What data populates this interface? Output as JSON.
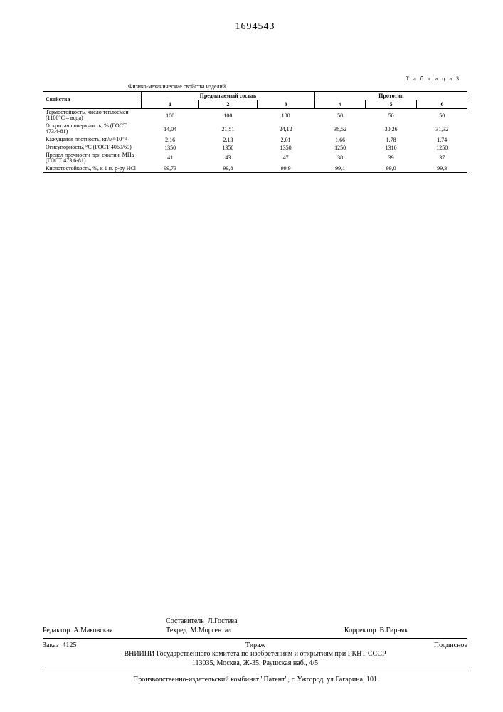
{
  "doc_number": "1694543",
  "table": {
    "label": "Т а б л и ц а 3",
    "title": "Физико-механические свойства изделий",
    "header_prop": "Свойства",
    "header_group1": "Предлагаемый состав",
    "header_group2": "Прототип",
    "cols": [
      "1",
      "2",
      "3",
      "4",
      "5",
      "6"
    ],
    "rows": [
      {
        "label": "Термостойкость, число теплосмен (1100°С – вода)",
        "vals": [
          "100",
          "100",
          "100",
          "50",
          "50",
          "50"
        ]
      },
      {
        "label": "Открытая поверхность, % (ГОСТ 473.4-81)",
        "vals": [
          "14,04",
          "21,51",
          "24,12",
          "36,52",
          "30,26",
          "31,32"
        ]
      },
      {
        "label": "Кажущаяся плотность, кг/м³·10⁻³",
        "vals": [
          "2,16",
          "2,13",
          "2,01",
          "1,66",
          "1,78",
          "1,74"
        ]
      },
      {
        "label": "Огнеупорность, °С (ГОСТ 4069/69)",
        "vals": [
          "1350",
          "1350",
          "1350",
          "1250",
          "1310",
          "1250"
        ]
      },
      {
        "label": "Предел прочности при сжатии, МПа (ГОСТ 473.6-81)",
        "vals": [
          "41",
          "43",
          "47",
          "38",
          "39",
          "37"
        ]
      },
      {
        "label": "Кислотостойкость, %, к 1 н. р-ру HCl",
        "vals": [
          "99,73",
          "99,8",
          "99,9",
          "99,1",
          "99,0",
          "99,3"
        ]
      }
    ]
  },
  "footer": {
    "editor_label": "Редактор",
    "editor": "А.Маковская",
    "compiler_label": "Составитель",
    "compiler": "Л.Гостева",
    "tech_label": "Техред",
    "tech": "М.Моргентал",
    "corrector_label": "Корректор",
    "corrector": "В.Гирняк",
    "zakaz_label": "Заказ",
    "zakaz": "4125",
    "tirazh": "Тираж",
    "podpis": "Подписное",
    "org": "ВНИИПИ Государственного комитета по изобретениям и открытиям при ГКНТ СССР",
    "addr": "113035, Москва, Ж-35, Раушская наб., 4/5",
    "bottom": "Производственно-издательский комбинат \"Патент\", г. Ужгород, ул.Гагарина, 101"
  }
}
